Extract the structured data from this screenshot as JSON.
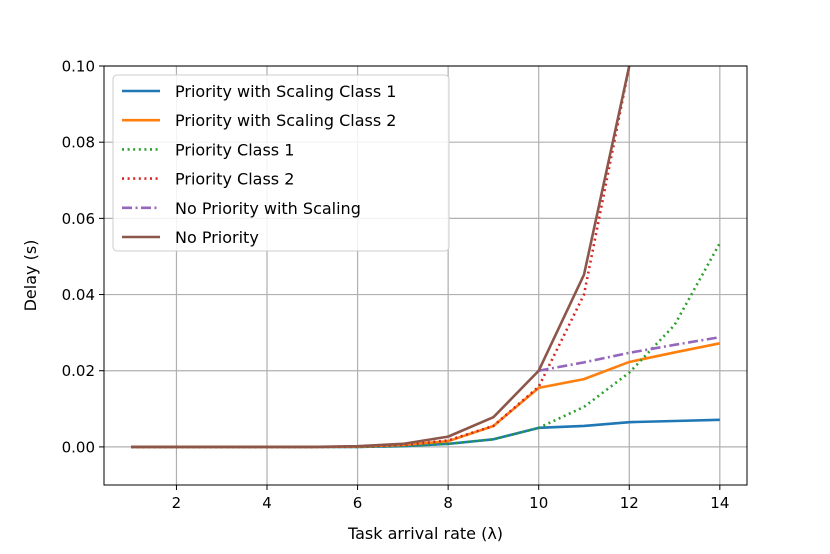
{
  "chart_data": {
    "type": "line",
    "xlabel": "Task arrival rate (λ)",
    "ylabel": "Delay (s)",
    "xlim": [
      0.4,
      14.6
    ],
    "ylim": [
      -0.01,
      0.1
    ],
    "xticks": [
      2,
      4,
      6,
      8,
      10,
      12,
      14
    ],
    "yticks": [
      0.0,
      0.02,
      0.04,
      0.06,
      0.08,
      0.1
    ],
    "ytick_labels": [
      "0.00",
      "0.02",
      "0.04",
      "0.06",
      "0.08",
      "0.10"
    ],
    "xtick_labels": [
      "2",
      "4",
      "6",
      "8",
      "10",
      "12",
      "14"
    ],
    "grid": true,
    "legend_position": "top-left",
    "series": [
      {
        "name": "Priority with Scaling Class 1",
        "color": "#1f77b4",
        "style": "solid",
        "x": [
          1,
          2,
          3,
          4,
          5,
          6,
          7,
          8,
          9,
          10,
          11,
          12,
          13,
          14
        ],
        "y": [
          0,
          0,
          0,
          0,
          0,
          0,
          0.0002,
          0.0008,
          0.002,
          0.005,
          0.0055,
          0.0065,
          0.0068,
          0.0071
        ]
      },
      {
        "name": "Priority with Scaling Class 2",
        "color": "#ff7f0e",
        "style": "solid",
        "x": [
          1,
          2,
          3,
          4,
          5,
          6,
          7,
          8,
          9,
          10,
          11,
          12,
          13,
          14
        ],
        "y": [
          0,
          0,
          0,
          0,
          0,
          0.0001,
          0.0005,
          0.0015,
          0.0055,
          0.0155,
          0.0178,
          0.0223,
          0.0248,
          0.0272
        ]
      },
      {
        "name": "Priority Class 1",
        "color": "#2ca02c",
        "style": "dotted",
        "x": [
          1,
          2,
          3,
          4,
          5,
          6,
          7,
          8,
          9,
          10,
          11,
          12,
          13,
          14
        ],
        "y": [
          0,
          0,
          0,
          0,
          0,
          0,
          0.0002,
          0.0008,
          0.002,
          0.005,
          0.0105,
          0.0195,
          0.032,
          0.0535
        ]
      },
      {
        "name": "Priority Class 2",
        "color": "#d62728",
        "style": "dotted",
        "x": [
          1,
          2,
          3,
          4,
          5,
          6,
          7,
          8,
          9,
          10,
          11,
          12
        ],
        "y": [
          0,
          0,
          0,
          0,
          0,
          0.0001,
          0.0005,
          0.0017,
          0.0055,
          0.0158,
          0.04,
          0.1
        ]
      },
      {
        "name": "No Priority with Scaling",
        "color": "#9467bd",
        "style": "dashdot",
        "x": [
          10,
          11,
          12,
          13,
          14
        ],
        "y": [
          0.02,
          0.0222,
          0.0247,
          0.0268,
          0.0288
        ]
      },
      {
        "name": "No Priority",
        "color": "#8c564b",
        "style": "solid",
        "x": [
          1,
          2,
          3,
          4,
          5,
          6,
          7,
          8,
          9,
          10,
          11,
          12
        ],
        "y": [
          0,
          0,
          0,
          0,
          0,
          0.0002,
          0.0008,
          0.0027,
          0.0078,
          0.02,
          0.0452,
          0.1
        ]
      }
    ]
  }
}
